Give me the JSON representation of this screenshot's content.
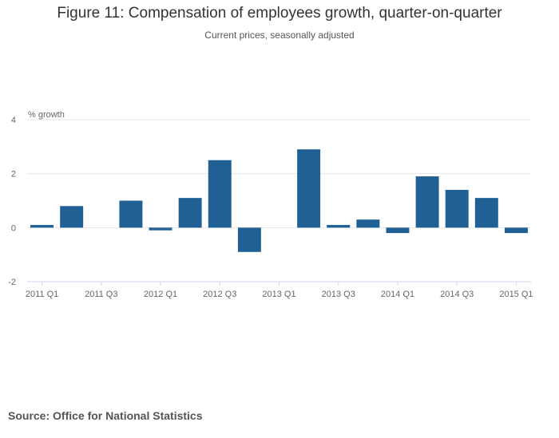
{
  "title": "Figure 11: Compensation of employees growth, quarter-on-quarter",
  "subtitle": "Current prices, seasonally adjusted",
  "source": "Source: Office for National Statistics",
  "colors": {
    "bar": "#206095",
    "grid": "#e6e6e6",
    "axis": "#ccd6eb",
    "text": "#666666"
  },
  "chart_data": {
    "type": "bar",
    "title": "Figure 11: Compensation of employees growth, quarter-on-quarter",
    "subtitle": "Current prices, seasonally adjusted",
    "ylabel": "% growth",
    "xlabel": "",
    "ylim": [
      -2,
      4
    ],
    "yticks": [
      -2,
      0,
      2,
      4
    ],
    "grid": true,
    "categories": [
      "2011 Q1",
      "2011 Q2",
      "2011 Q3",
      "2011 Q4",
      "2012 Q1",
      "2012 Q2",
      "2012 Q3",
      "2012 Q4",
      "2013 Q1",
      "2013 Q2",
      "2013 Q3",
      "2013 Q4",
      "2014 Q1",
      "2014 Q2",
      "2014 Q3",
      "2014 Q4",
      "2015 Q1"
    ],
    "xtick_labels": [
      "2011 Q1",
      "2011 Q3",
      "2012 Q1",
      "2012 Q3",
      "2013 Q1",
      "2013 Q3",
      "2014 Q1",
      "2014 Q3",
      "2015 Q1"
    ],
    "values": [
      0.1,
      0.8,
      0.0,
      1.0,
      -0.1,
      1.1,
      2.5,
      -0.9,
      0.0,
      2.9,
      0.1,
      0.3,
      -0.2,
      1.9,
      1.4,
      1.1,
      -0.2
    ]
  }
}
